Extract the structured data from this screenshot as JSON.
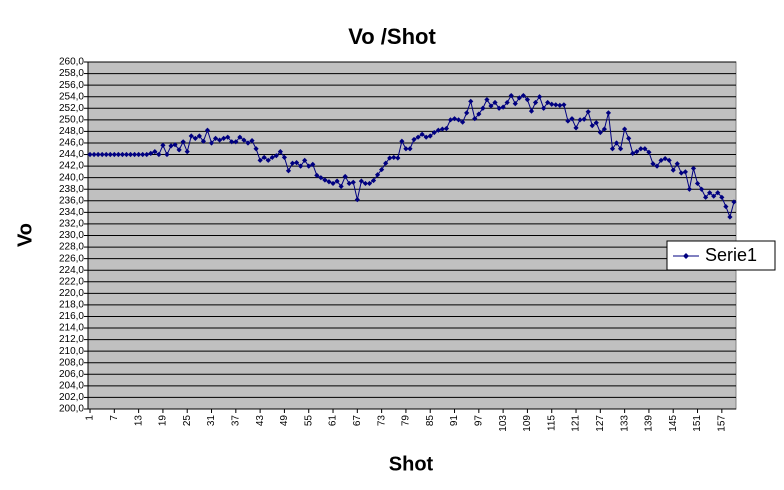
{
  "chart_data": {
    "type": "line",
    "title": "Vo /Shot",
    "x_label": "Shot",
    "y_label": "Vo",
    "categories": [
      "1",
      null,
      null,
      null,
      null,
      null,
      "7",
      null,
      null,
      null,
      null,
      null,
      "13",
      null,
      null,
      null,
      null,
      null,
      "19",
      null,
      null,
      null,
      null,
      null,
      "25",
      null,
      null,
      null,
      null,
      null,
      "31",
      null,
      null,
      null,
      null,
      null,
      "37",
      null,
      null,
      null,
      null,
      null,
      "43",
      null,
      null,
      null,
      null,
      null,
      "49",
      null,
      null,
      null,
      null,
      null,
      "55",
      null,
      null,
      null,
      null,
      null,
      "61",
      null,
      null,
      null,
      null,
      null,
      "67",
      null,
      null,
      null,
      null,
      null,
      "73",
      null,
      null,
      null,
      null,
      null,
      "79",
      null,
      null,
      null,
      null,
      null,
      "85",
      null,
      null,
      null,
      null,
      null,
      "91",
      null,
      null,
      null,
      null,
      null,
      "97",
      null,
      null,
      null,
      null,
      null,
      "103",
      null,
      null,
      null,
      null,
      null,
      "109",
      null,
      null,
      null,
      null,
      null,
      "115",
      null,
      null,
      null,
      null,
      null,
      "121",
      null,
      null,
      null,
      null,
      null,
      "127",
      null,
      null,
      null,
      null,
      null,
      "133",
      null,
      null,
      null,
      null,
      null,
      "139",
      null,
      null,
      null,
      null,
      null,
      "145",
      null,
      null,
      null,
      null,
      null,
      "151",
      null,
      null,
      null,
      null,
      null,
      "157",
      null,
      null,
      null
    ],
    "series": [
      {
        "name": "Serie1",
        "color": "#000080",
        "values": [
          244,
          244,
          244,
          244,
          244,
          244,
          244,
          244,
          244,
          244,
          244,
          244,
          244,
          244,
          244,
          244.2,
          244.5,
          244,
          245.6,
          244,
          245.5,
          245.7,
          244.8,
          246.2,
          244.5,
          247.2,
          246.8,
          247.2,
          246.3,
          248.2,
          246,
          246.8,
          246.5,
          246.8,
          247,
          246.2,
          246.2,
          247,
          246.5,
          246,
          246.4,
          245,
          243,
          243.5,
          243,
          243.5,
          243.8,
          244.5,
          243.5,
          241.2,
          242.5,
          242.6,
          242,
          243,
          242,
          242.3,
          240.4,
          240,
          239.6,
          239.3,
          239,
          239.4,
          238.5,
          240.2,
          239,
          239.2,
          236.2,
          239.4,
          239,
          239,
          239.5,
          240.5,
          241.4,
          242.5,
          243.4,
          243.5,
          243.4,
          246.3,
          245,
          245,
          246.6,
          247,
          247.5,
          247,
          247.2,
          247.8,
          248.2,
          248.4,
          248.5,
          250,
          250.2,
          250,
          249.6,
          251.2,
          253.2,
          250.2,
          251,
          252,
          253.5,
          252.4,
          253,
          252,
          252.2,
          253,
          254.2,
          252.8,
          253.8,
          254.2,
          253.5,
          251.5,
          253,
          254,
          252,
          253,
          252.7,
          252.6,
          252.5,
          252.6,
          249.8,
          250.2,
          248.6,
          250,
          250.1,
          251.4,
          249,
          249.5,
          247.8,
          248.4,
          251.2,
          245,
          246,
          245,
          248.4,
          246.8,
          244.2,
          244.5,
          245,
          245,
          244.4,
          242.4,
          242,
          243,
          243.3,
          243,
          241.3,
          242.4,
          240.8,
          241,
          238,
          241.6,
          239,
          238,
          236.6,
          237.4,
          236.8,
          237.4,
          236.6,
          235,
          233.2,
          235.8
        ]
      }
    ],
    "ylim": [
      200,
      260
    ],
    "yticks": [
      {
        "value": 200,
        "label": "200,0"
      },
      {
        "value": 202,
        "label": "202,0"
      },
      {
        "value": 204,
        "label": "204,0"
      },
      {
        "value": 206,
        "label": "206,0"
      },
      {
        "value": 208,
        "label": "208,0"
      },
      {
        "value": 210,
        "label": "210,0"
      },
      {
        "value": 212,
        "label": "212,0"
      },
      {
        "value": 214,
        "label": "214,0"
      },
      {
        "value": 216,
        "label": "216,0"
      },
      {
        "value": 218,
        "label": "218,0"
      },
      {
        "value": 220,
        "label": "220,0"
      },
      {
        "value": 222,
        "label": "222,0"
      },
      {
        "value": 224,
        "label": "224,0"
      },
      {
        "value": 226,
        "label": "226,0"
      },
      {
        "value": 228,
        "label": "228,0"
      },
      {
        "value": 230,
        "label": "230,0"
      },
      {
        "value": 232,
        "label": "232,0"
      },
      {
        "value": 234,
        "label": "234,0"
      },
      {
        "value": 236,
        "label": "236,0"
      },
      {
        "value": 238,
        "label": "238,0"
      },
      {
        "value": 240,
        "label": "240,0"
      },
      {
        "value": 242,
        "label": "242,0"
      },
      {
        "value": 244,
        "label": "244,0"
      },
      {
        "value": 246,
        "label": "246,0"
      },
      {
        "value": 248,
        "label": "248,0"
      },
      {
        "value": 250,
        "label": "250,0"
      },
      {
        "value": 252,
        "label": "252,0"
      },
      {
        "value": 254,
        "label": "254,0"
      },
      {
        "value": 256,
        "label": "256,0"
      },
      {
        "value": 258,
        "label": "258,0"
      },
      {
        "value": 260,
        "label": "260,0"
      }
    ],
    "grid": true,
    "legend": "right"
  }
}
